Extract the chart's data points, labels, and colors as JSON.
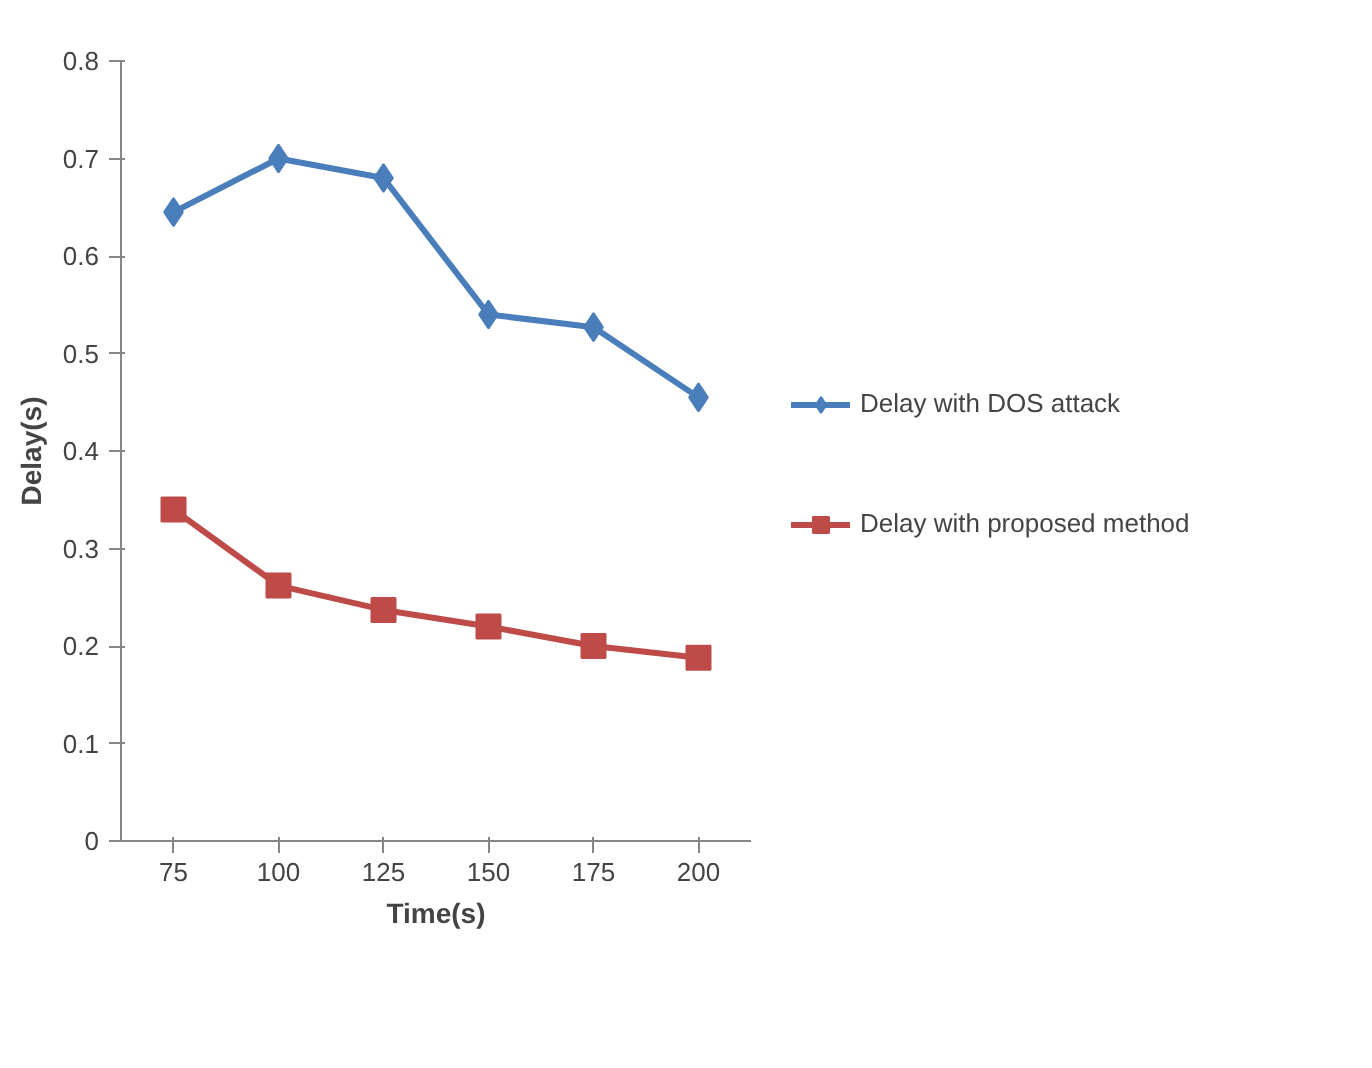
{
  "chart_data": {
    "type": "line",
    "xlabel": "Time(s)",
    "ylabel": "Delay(s)",
    "categories": [
      "75",
      "100",
      "125",
      "150",
      "175",
      "200"
    ],
    "ylim": [
      0,
      0.8
    ],
    "yticks": [
      0,
      0.1,
      0.2,
      0.3,
      0.4,
      0.5,
      0.6,
      0.7,
      0.8
    ],
    "legend": "right",
    "line_style": "solid",
    "series": [
      {
        "name": "Delay with DOS attack",
        "color": "#4a7ebb",
        "marker": "diamond",
        "values": [
          0.645,
          0.7,
          0.68,
          0.54,
          0.527,
          0.455
        ]
      },
      {
        "name": "Delay with proposed method",
        "color": "#be4b48",
        "marker": "square",
        "values": [
          0.34,
          0.262,
          0.237,
          0.22,
          0.2,
          0.188
        ]
      }
    ]
  }
}
